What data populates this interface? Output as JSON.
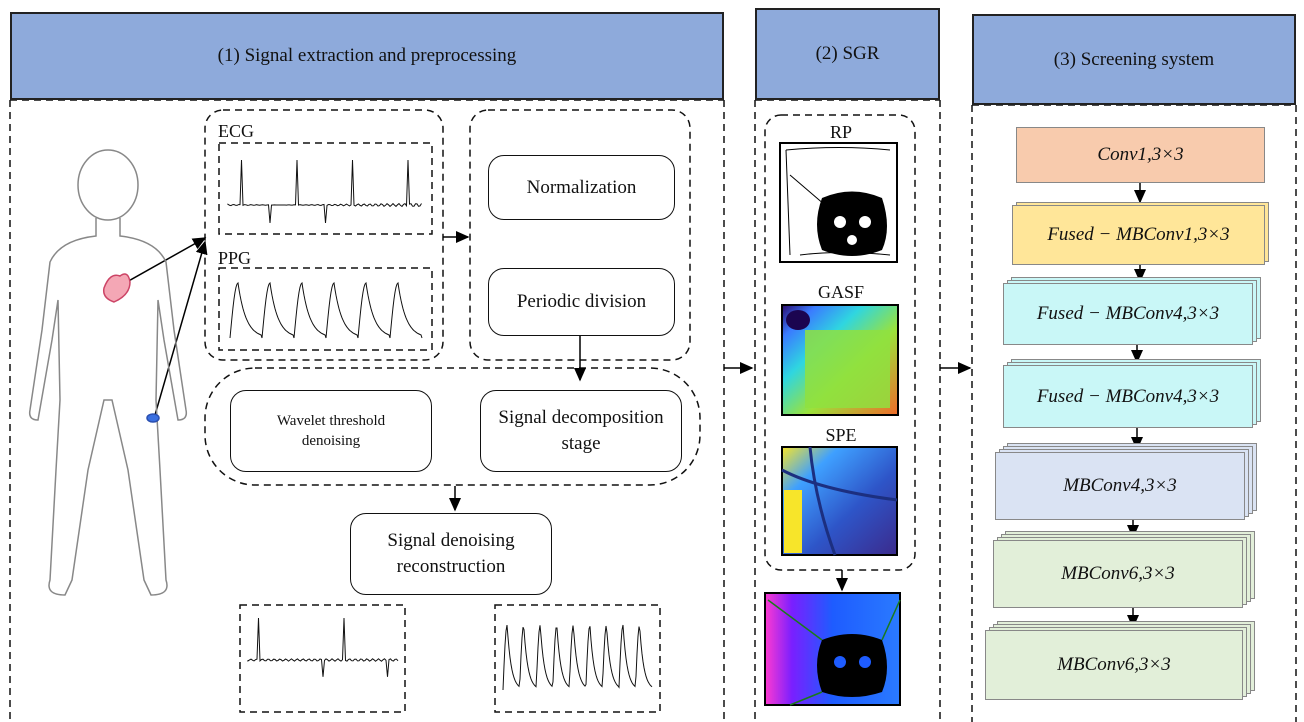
{
  "panels": [
    {
      "title": "(1) Signal extraction and preprocessing"
    },
    {
      "title": "(2) SGR"
    },
    {
      "title": "(3) Screening system"
    }
  ],
  "signals": {
    "ecg": "ECG",
    "ppg": "PPG"
  },
  "steps": {
    "normalization": "Normalization",
    "periodic_division": "Periodic division",
    "wavelet": "Wavelet threshold denoising",
    "decomposition": "Signal decomposition stage",
    "reconstruction": "Signal denoising reconstruction"
  },
  "images": [
    "RP",
    "GASF",
    "SPE"
  ],
  "layers": [
    "Conv1,3×3",
    "Fused − MBConv1,3×3",
    "Fused − MBConv4,3×3",
    "Fused − MBConv4,3×3",
    "MBConv4,3×3",
    "MBConv6,3×3",
    "MBConv6,3×3"
  ]
}
